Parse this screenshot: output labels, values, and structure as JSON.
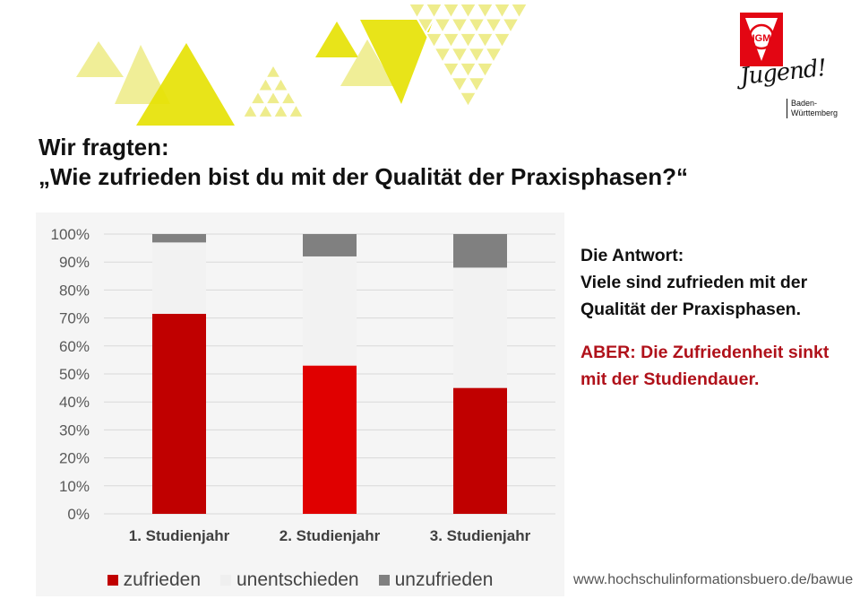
{
  "title": {
    "line1": "Wir fragten:",
    "line2": "„Wie zufrieden bist du mit der Qualität der Praxisphasen?“"
  },
  "logo": {
    "letters": "IGM",
    "script": "Jugend!",
    "region": "Baden-\nWürttemberg",
    "colors": {
      "red": "#e30613",
      "white": "#ffffff"
    }
  },
  "answer": {
    "heading": "Die Antwort:",
    "text": "Viele sind zufrieden mit der Qualität der Praxisphasen.",
    "highlight": "ABER: Die Zufriedenheit sinkt mit der Studiendauer."
  },
  "source": "www.hochschulinformationsbuero.de/bawue",
  "decoration": {
    "yellow": "#e5e100",
    "light_yellow": "#eeec8c"
  },
  "chart_data": {
    "type": "bar",
    "stacked": true,
    "percent": true,
    "categories": [
      "1. Studienjahr",
      "2. Studienjahr",
      "3. Studienjahr"
    ],
    "series": [
      {
        "name": "zufrieden",
        "values": [
          71.5,
          53,
          45
        ],
        "color": "#c00000",
        "bar_colors": [
          "#c00000",
          "#e00000",
          "#c00000"
        ]
      },
      {
        "name": "unentschieden",
        "values": [
          25.5,
          39,
          43
        ],
        "color": "#f2f2f2"
      },
      {
        "name": "unzufrieden",
        "values": [
          3,
          8,
          12
        ],
        "color": "#808080"
      }
    ],
    "ylim": [
      0,
      100
    ],
    "yticks": [
      "0%",
      "10%",
      "20%",
      "30%",
      "40%",
      "50%",
      "60%",
      "70%",
      "80%",
      "90%",
      "100%"
    ],
    "grid": true,
    "legend": "bottom"
  }
}
